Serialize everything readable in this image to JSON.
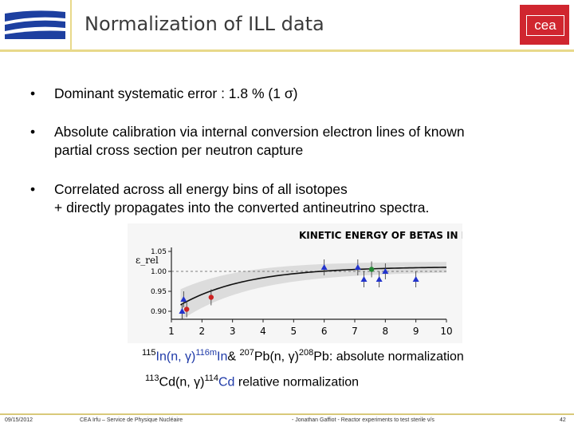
{
  "header": {
    "title": "Normalization of ILL data",
    "cea_logo_text": "cea",
    "accent": "#e8d98a",
    "cea_red": "#d0262f"
  },
  "bullets": [
    {
      "line1": "Dominant systematic error : 1.8 % (1 σ)"
    },
    {
      "line1": "Absolute calibration via internal conversion electron lines of known",
      "line2": "partial cross section per neutron capture"
    },
    {
      "line1": "Correlated across all energy bins of all isotopes",
      "line2": "+ directly propagates into the converted antineutrino spectra."
    }
  ],
  "chart_data": {
    "type": "scatter",
    "title": "KINETIC ENERGY OF BETAS IN MEV",
    "ylabel": "ε_rel",
    "x_ticks": [
      1,
      2,
      3,
      4,
      5,
      6,
      7,
      8,
      9,
      10
    ],
    "y_ticks": [
      0.9,
      0.95,
      1.0,
      1.05
    ],
    "xlim": [
      1,
      10
    ],
    "ylim": [
      0.88,
      1.06
    ],
    "series": [
      {
        "color": "#2233cc",
        "points": [
          [
            1.4,
            0.93
          ],
          [
            1.35,
            0.9
          ],
          [
            6.0,
            1.01
          ],
          [
            7.1,
            1.01
          ],
          [
            7.3,
            0.98
          ],
          [
            7.8,
            0.98
          ],
          [
            8.0,
            1.0
          ],
          [
            9.0,
            0.98
          ]
        ]
      },
      {
        "color": "#cc2222",
        "points": [
          [
            1.5,
            0.905
          ],
          [
            2.3,
            0.935
          ]
        ]
      },
      {
        "color": "#228833",
        "points": [
          [
            7.55,
            1.005
          ]
        ]
      }
    ]
  },
  "captions": {
    "line1_pre_sup": "115",
    "line1_a": "In(n, γ)",
    "line1_sup2": "116m",
    "line1_b": "In",
    "line1_amp": "& ",
    "line1_sup3": "207",
    "line1_c": "Pb(n, γ)",
    "line1_sup4": "208",
    "line1_d": "Pb",
    "line1_e": ": absolute normalization",
    "line2_sup1": "113",
    "line2_a": "Cd(n, γ)",
    "line2_sup2": "114",
    "line2_b": "Cd",
    "line2_c": " relative normalization"
  },
  "footer": {
    "date": "09/15/2012",
    "org": "CEA Irfu – Service de Physique Nucléaire",
    "author": "- Jonathan Gaffiot - Reactor experiments to test sterile ν/s",
    "page": "42"
  }
}
